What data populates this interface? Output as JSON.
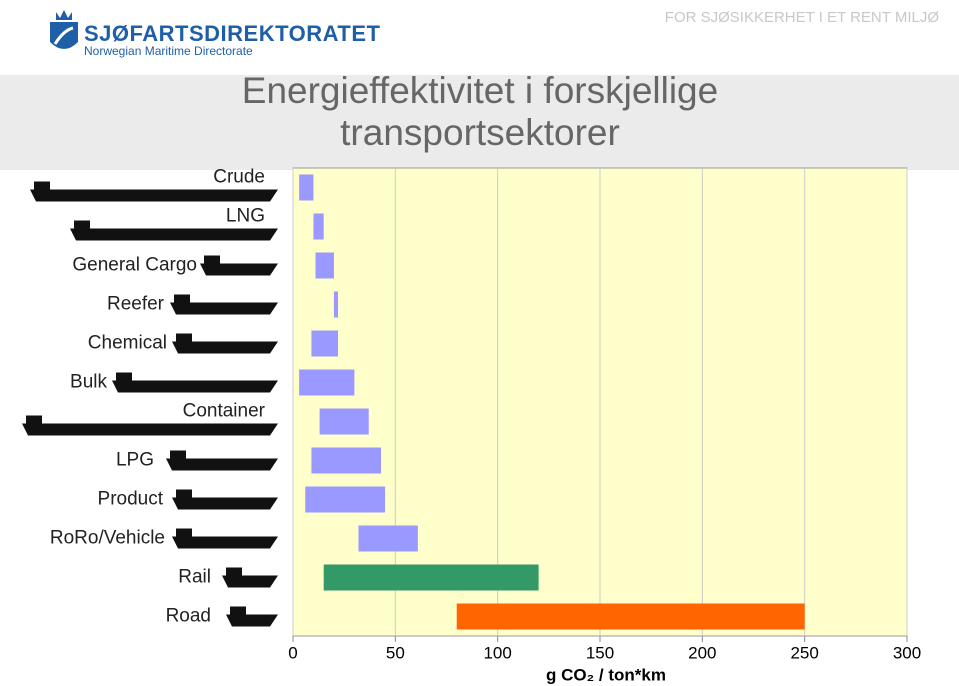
{
  "header": {
    "organization": "SJØFARTSDIREKTORATET",
    "organization_en": "Norwegian Maritime Directorate",
    "tagline": "FOR SJØSIKKERHET I ET RENT MILJØ"
  },
  "chart_data": {
    "type": "range-bar",
    "title": "Energieffektivitet i forskjellige transportsektorer",
    "x_label": "g CO₂ / ton*km",
    "categories": [
      "Crude",
      "LNG",
      "General Cargo",
      "Reefer",
      "Chemical",
      "Bulk",
      "Container",
      "LPG",
      "Product",
      "RoRo/Vehicle",
      "Rail",
      "Road"
    ],
    "values": [
      [
        3,
        10
      ],
      [
        10,
        15
      ],
      [
        11,
        20
      ],
      [
        20,
        22
      ],
      [
        9,
        22
      ],
      [
        3,
        30
      ],
      [
        13,
        37
      ],
      [
        9,
        43
      ],
      [
        6,
        45
      ],
      [
        32,
        61
      ],
      [
        15,
        120
      ],
      [
        80,
        250
      ]
    ],
    "colors": [
      "#9999ff",
      "#9999ff",
      "#9999ff",
      "#9999ff",
      "#9999ff",
      "#9999ff",
      "#9999ff",
      "#9999ff",
      "#9999ff",
      "#9999ff",
      "#339966",
      "#ff6600"
    ],
    "xlim": [
      0,
      300
    ],
    "xticks": [
      0,
      50,
      100,
      150,
      200,
      250,
      300
    ],
    "grid": true,
    "background": "#ffffcc"
  }
}
